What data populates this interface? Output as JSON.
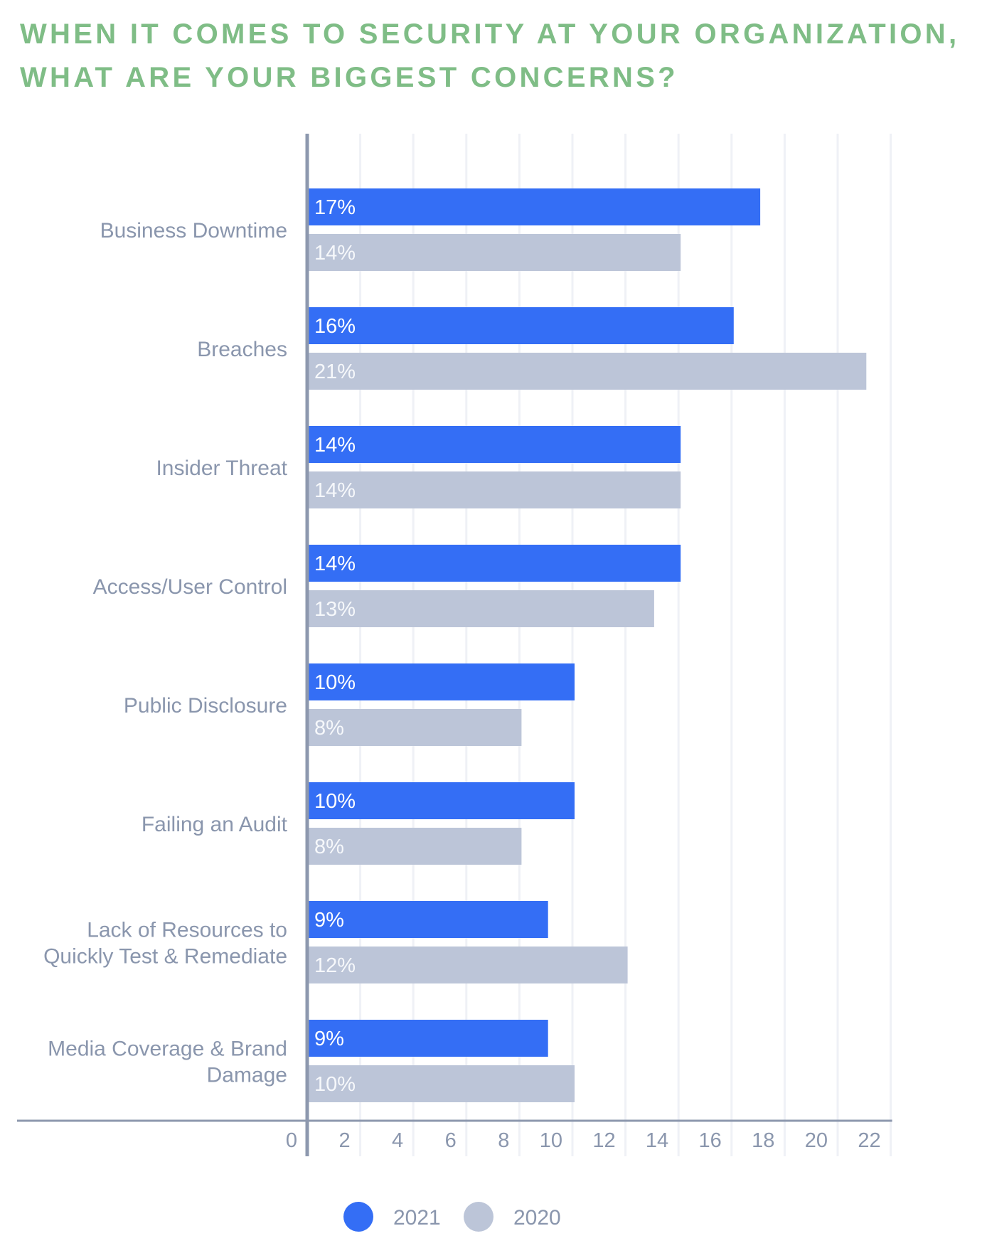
{
  "chart_data": {
    "type": "bar",
    "orientation": "horizontal",
    "title": "WHEN IT COMES TO SECURITY AT YOUR ORGANIZATION, WHAT ARE YOUR BIGGEST CONCERNS?",
    "title_lines": [
      "WHEN IT COMES TO SECURITY AT YOUR ORGANIZATION,",
      "WHAT ARE YOUR BIGGEST CONCERNS?"
    ],
    "categories": [
      [
        "Business Downtime"
      ],
      [
        "Breaches"
      ],
      [
        "Insider Threat"
      ],
      [
        "Access/User Control"
      ],
      [
        "Public Disclosure"
      ],
      [
        "Failing an Audit"
      ],
      [
        "Lack of Resources to",
        "Quickly Test & Remediate"
      ],
      [
        "Media Coverage & Brand",
        "Damage"
      ]
    ],
    "series": [
      {
        "name": "2021",
        "color": "#346ef5",
        "values": [
          17,
          16,
          14,
          14,
          10,
          10,
          9,
          9
        ],
        "labels": [
          "17%",
          "16%",
          "14%",
          "14%",
          "10%",
          "10%",
          "9%",
          "9%"
        ]
      },
      {
        "name": "2020",
        "color": "#bcc5d8",
        "values": [
          14,
          21,
          14,
          13,
          8,
          8,
          12,
          10
        ],
        "labels": [
          "14%",
          "21%",
          "14%",
          "13%",
          "8%",
          "8%",
          "12%",
          "10%"
        ]
      }
    ],
    "xlim": [
      0,
      22
    ],
    "xticks": [
      0,
      2,
      4,
      6,
      8,
      10,
      12,
      14,
      16,
      18,
      20,
      22
    ],
    "xlabel": "",
    "ylabel": "",
    "grid": true,
    "legend_position": "bottom-center",
    "colors": {
      "title": "#7fbd86",
      "text": "#8a96ad",
      "axis": "#8d98ae",
      "grid": "#eff1f6"
    }
  }
}
